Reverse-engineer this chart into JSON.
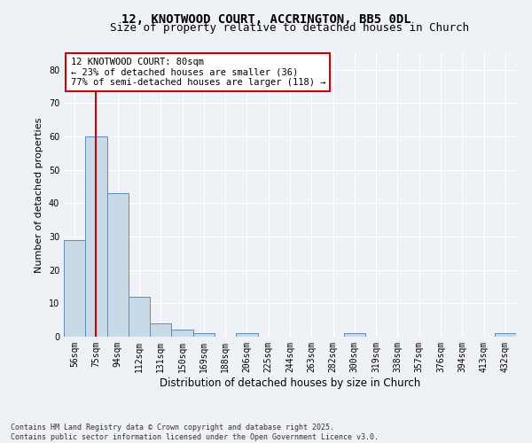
{
  "title": "12, KNOTWOOD COURT, ACCRINGTON, BB5 0DL",
  "subtitle": "Size of property relative to detached houses in Church",
  "xlabel": "Distribution of detached houses by size in Church",
  "ylabel": "Number of detached properties",
  "categories": [
    "56sqm",
    "75sqm",
    "94sqm",
    "112sqm",
    "131sqm",
    "150sqm",
    "169sqm",
    "188sqm",
    "206sqm",
    "225sqm",
    "244sqm",
    "263sqm",
    "282sqm",
    "300sqm",
    "319sqm",
    "338sqm",
    "357sqm",
    "376sqm",
    "394sqm",
    "413sqm",
    "432sqm"
  ],
  "values": [
    29,
    60,
    43,
    12,
    4,
    2,
    1,
    0,
    1,
    0,
    0,
    0,
    0,
    1,
    0,
    0,
    0,
    0,
    0,
    0,
    1
  ],
  "bar_color": "#c8d9e8",
  "bar_edge_color": "#5b8db8",
  "vline_x_index": 1,
  "vline_color": "#cc0000",
  "annotation_text": "12 KNOTWOOD COURT: 80sqm\n← 23% of detached houses are smaller (36)\n77% of semi-detached houses are larger (118) →",
  "annotation_box_edgecolor": "#cc0000",
  "annotation_text_color": "#000000",
  "ylim": [
    0,
    85
  ],
  "yticks": [
    0,
    10,
    20,
    30,
    40,
    50,
    60,
    70,
    80
  ],
  "footer": "Contains HM Land Registry data © Crown copyright and database right 2025.\nContains public sector information licensed under the Open Government Licence v3.0.",
  "bg_color": "#eef2f7",
  "grid_color": "#ffffff",
  "title_fontsize": 10,
  "subtitle_fontsize": 9,
  "tick_fontsize": 7,
  "ylabel_fontsize": 8,
  "xlabel_fontsize": 8.5,
  "annotation_fontsize": 7.5,
  "footer_fontsize": 6
}
